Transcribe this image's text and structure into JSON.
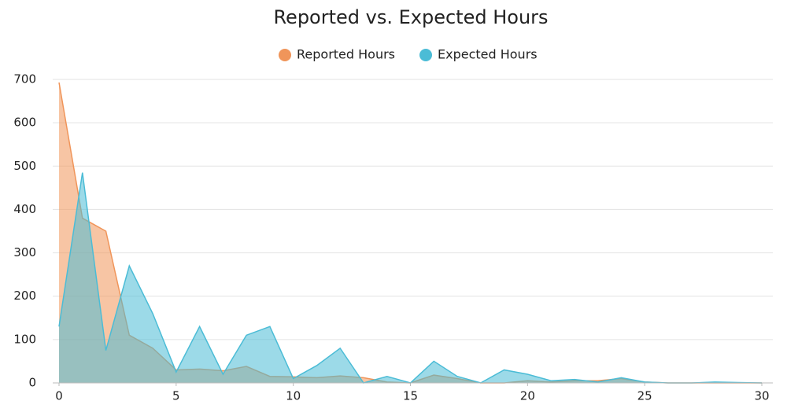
{
  "chart_data": {
    "type": "area",
    "title": "Reported vs. Expected Hours",
    "x": [
      0,
      1,
      2,
      3,
      4,
      5,
      6,
      7,
      8,
      9,
      10,
      11,
      12,
      13,
      14,
      15,
      16,
      17,
      18,
      19,
      20,
      21,
      22,
      23,
      24,
      25,
      26,
      27,
      28,
      29,
      30
    ],
    "series": [
      {
        "name": "Reported Hours",
        "color": "#f0955a",
        "values": [
          693,
          380,
          350,
          110,
          80,
          30,
          32,
          28,
          38,
          15,
          14,
          12,
          16,
          12,
          2,
          0,
          18,
          10,
          0,
          0,
          5,
          2,
          5,
          5,
          10,
          2,
          0,
          0,
          0,
          0,
          0
        ]
      },
      {
        "name": "Expected Hours",
        "color": "#4bbcd6",
        "values": [
          130,
          485,
          75,
          270,
          160,
          25,
          130,
          20,
          110,
          130,
          10,
          40,
          80,
          0,
          15,
          0,
          50,
          15,
          0,
          30,
          20,
          5,
          8,
          2,
          12,
          2,
          0,
          0,
          2,
          1,
          0
        ]
      }
    ],
    "xlim": [
      0,
      30
    ],
    "xticks": [
      0,
      5,
      10,
      15,
      20,
      25,
      30
    ],
    "ylim": [
      0,
      700
    ],
    "yticks": [
      0,
      100,
      200,
      300,
      400,
      500,
      600,
      700
    ],
    "grid": true,
    "legend": "top"
  }
}
